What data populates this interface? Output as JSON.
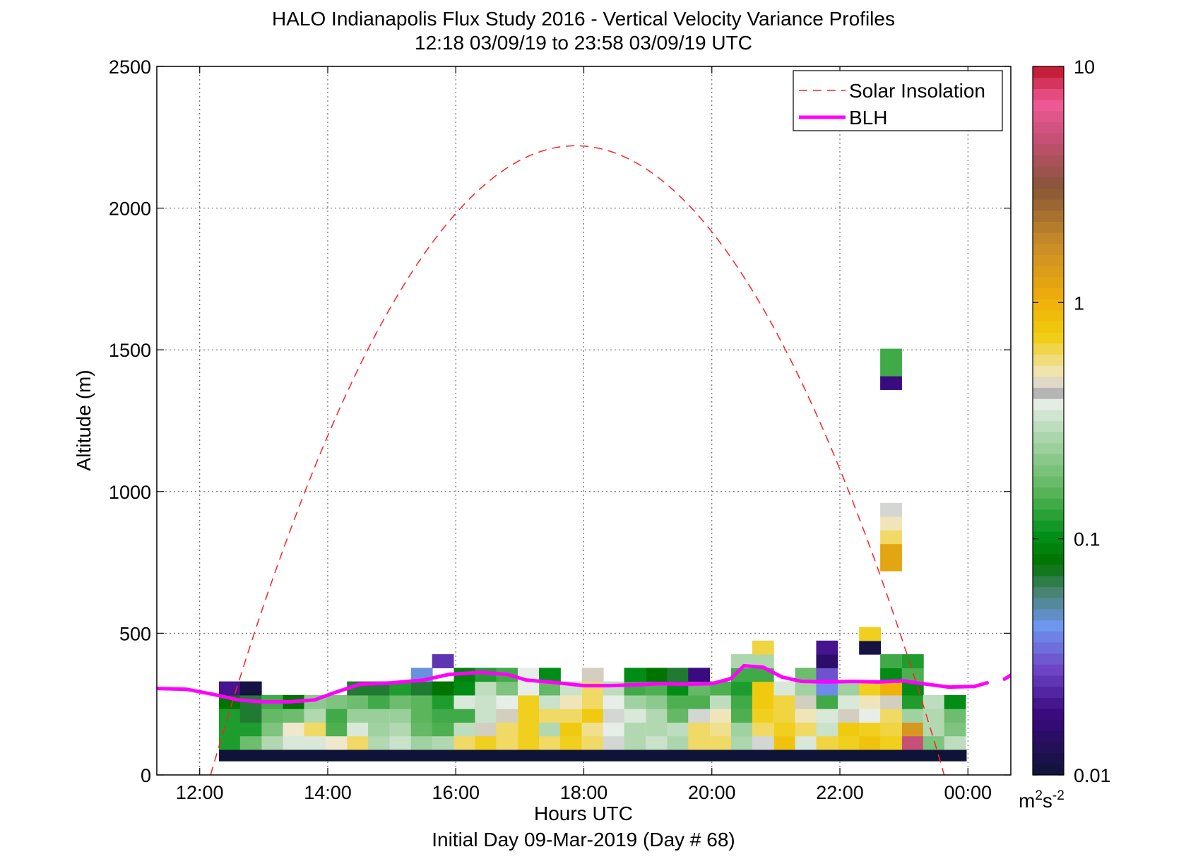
{
  "chart_data": {
    "type": "heatmap",
    "title_line1": "HALO Indianapolis Flux Study 2016 - Vertical Velocity Variance Profiles",
    "title_line2": "12:18 03/09/19 to 23:58 03/09/19  UTC",
    "xlabel": "Hours UTC",
    "xlabel2": "Initial Day 09-Mar-2019 (Day # 68)",
    "ylabel": "Altitude (m)",
    "xlim_hours": [
      11.33,
      24.67
    ],
    "ylim": [
      0,
      2500
    ],
    "xticks": [
      {
        "value": 12,
        "label": "12:00"
      },
      {
        "value": 14,
        "label": "14:00"
      },
      {
        "value": 16,
        "label": "16:00"
      },
      {
        "value": 18,
        "label": "18:00"
      },
      {
        "value": 20,
        "label": "20:00"
      },
      {
        "value": 22,
        "label": "22:00"
      },
      {
        "value": 24,
        "label": "00:00"
      }
    ],
    "yticks": [
      0,
      500,
      1000,
      1500,
      2000,
      2500
    ],
    "grid": true,
    "colorbar": {
      "scale": "log",
      "min": 0.01,
      "max": 10,
      "ticks": [
        {
          "value": 0.01,
          "label": "0.01"
        },
        {
          "value": 0.1,
          "label": "0.1"
        },
        {
          "value": 1,
          "label": "1"
        },
        {
          "value": 10,
          "label": "10"
        }
      ],
      "unit_base": "m",
      "unit_exp1": "2",
      "unit_mid": "s",
      "unit_exp2": "-2"
    },
    "legend": {
      "placement": "top-right",
      "items": [
        {
          "label": "Solar Insolation",
          "style": "dashed",
          "color": "#ff2020"
        },
        {
          "label": "BLH",
          "style": "solid",
          "color": "#ff00ff"
        }
      ]
    },
    "solar_insolation": {
      "peak_hour": 17.87,
      "peak_altitude": 2220,
      "zero_crossings_hours": [
        12.17,
        23.63
      ]
    },
    "blh": {
      "x_hours": [
        11.33,
        11.8,
        12.2,
        12.6,
        13.0,
        13.4,
        13.8,
        14.1,
        14.5,
        15.0,
        15.5,
        15.9,
        16.4,
        16.8,
        17.1,
        17.6,
        18.0,
        18.4,
        18.8,
        19.2,
        19.6,
        20.0,
        20.3,
        20.5,
        20.8,
        21.1,
        21.4,
        21.8,
        22.2,
        22.6,
        23.0,
        23.3,
        23.7,
        24.1,
        24.3
      ],
      "altitudes": [
        305,
        302,
        285,
        265,
        258,
        258,
        265,
        290,
        320,
        325,
        335,
        355,
        362,
        355,
        335,
        325,
        315,
        315,
        318,
        322,
        320,
        322,
        340,
        385,
        380,
        345,
        330,
        328,
        330,
        328,
        332,
        322,
        310,
        312,
        325
      ],
      "extra_segment": {
        "x_hours": [
          24.57,
          24.67
        ],
        "altitudes": [
          338,
          352
        ]
      }
    },
    "cell_height_m": 48,
    "baseline_strip": {
      "x_hours": [
        12.3,
        23.98
      ],
      "altitudes": [
        48,
        90
      ],
      "value": 0.01
    },
    "cells": [
      {
        "t": 12.3,
        "v": [
          0.12,
          0.12,
          0.12,
          0.08,
          0.02,
          null
        ]
      },
      {
        "t": 12.63,
        "v": [
          0.18,
          0.12,
          0.07,
          0.07,
          0.011,
          null
        ]
      },
      {
        "t": 12.97,
        "v": [
          0.28,
          0.2,
          0.17,
          0.14,
          null,
          null
        ]
      },
      {
        "t": 13.3,
        "v": [
          0.35,
          0.48,
          0.18,
          0.08,
          null,
          null
        ]
      },
      {
        "t": 13.63,
        "v": [
          0.35,
          0.6,
          0.28,
          0.22,
          null,
          null
        ]
      },
      {
        "t": 13.97,
        "v": [
          0.48,
          0.15,
          0.14,
          0.2,
          null,
          null
        ]
      },
      {
        "t": 14.3,
        "v": [
          0.6,
          0.35,
          0.24,
          0.18,
          0.07,
          null
        ]
      },
      {
        "t": 14.63,
        "v": [
          0.28,
          0.25,
          0.24,
          0.14,
          0.07,
          null
        ]
      },
      {
        "t": 14.97,
        "v": [
          0.32,
          0.28,
          0.24,
          0.18,
          0.12,
          null
        ]
      },
      {
        "t": 15.3,
        "v": [
          0.25,
          0.17,
          0.16,
          0.16,
          0.07,
          0.045
        ]
      },
      {
        "t": 15.63,
        "v": [
          0.28,
          0.15,
          0.14,
          0.12,
          0.08,
          null,
          0.025
        ]
      },
      {
        "t": 15.97,
        "v": [
          0.6,
          0.3,
          0.14,
          0.35,
          0.1,
          0.09
        ]
      },
      {
        "t": 16.3,
        "v": [
          0.7,
          0.45,
          0.32,
          0.32,
          0.3,
          0.12
        ]
      },
      {
        "t": 16.63,
        "v": [
          0.6,
          0.6,
          0.45,
          0.38,
          0.2,
          0.14
        ]
      },
      {
        "t": 16.97,
        "v": [
          0.7,
          0.7,
          0.7,
          0.7,
          0.38,
          0.38
        ]
      },
      {
        "t": 17.3,
        "v": [
          0.6,
          0.28,
          0.6,
          0.32,
          0.17,
          0.1
        ]
      },
      {
        "t": 17.63,
        "v": [
          0.7,
          0.75,
          0.6,
          0.5,
          0.32,
          null
        ]
      },
      {
        "t": 17.97,
        "v": [
          0.6,
          0.55,
          0.75,
          0.6,
          0.6,
          0.45
        ]
      },
      {
        "t": 18.3,
        "v": [
          0.4,
          0.38,
          0.4,
          0.38,
          0.3,
          null
        ]
      },
      {
        "t": 18.63,
        "v": [
          0.28,
          0.28,
          0.35,
          0.25,
          0.14,
          0.1
        ]
      },
      {
        "t": 18.97,
        "v": [
          0.32,
          0.28,
          0.28,
          0.22,
          0.15,
          0.08
        ]
      },
      {
        "t": 19.3,
        "v": [
          0.27,
          0.3,
          0.17,
          0.15,
          0.1,
          0.07
        ]
      },
      {
        "t": 19.63,
        "v": [
          0.6,
          0.6,
          0.4,
          0.15,
          0.17,
          0.018
        ]
      },
      {
        "t": 19.97,
        "v": [
          0.6,
          0.55,
          0.5,
          0.3,
          0.15,
          null
        ]
      },
      {
        "t": 20.3,
        "v": [
          0.27,
          0.25,
          0.15,
          0.14,
          0.12,
          0.14,
          0.27
        ]
      },
      {
        "t": 20.63,
        "v": [
          0.4,
          0.6,
          0.7,
          0.75,
          0.75,
          0.14,
          0.27,
          0.65
        ]
      },
      {
        "t": 20.97,
        "v": [
          0.8,
          0.7,
          0.65,
          0.65,
          0.35,
          null
        ]
      },
      {
        "t": 21.3,
        "v": [
          0.35,
          0.6,
          0.5,
          0.45,
          0.25,
          0.18
        ]
      },
      {
        "t": 21.63,
        "v": [
          0.65,
          0.32,
          0.35,
          0.14,
          0.04,
          0.03,
          0.015,
          0.02
        ]
      },
      {
        "t": 21.97,
        "v": [
          0.7,
          0.75,
          0.45,
          0.35,
          0.25,
          null
        ]
      },
      {
        "t": 22.3,
        "v": [
          0.8,
          0.7,
          0.38,
          0.5,
          0.7,
          null,
          null,
          0.011,
          0.7
        ]
      },
      {
        "t": 22.63,
        "v": [
          0.7,
          0.65,
          0.6,
          0.45,
          1.0,
          0.1,
          0.14
        ]
      },
      {
        "t": 22.97,
        "v": [
          5.0,
          1.5,
          0.25,
          0.12,
          0.1,
          0.15,
          0.12
        ]
      },
      {
        "t": 23.3,
        "v": [
          0.2,
          0.28,
          0.28,
          0.3,
          null,
          null
        ]
      },
      {
        "t": 23.63,
        "v": [
          0.3,
          0.2,
          0.18,
          0.1,
          null,
          null
        ]
      }
    ],
    "elevated_cells": [
      {
        "t": 22.63,
        "alt": 1360,
        "v": 0.018
      },
      {
        "t": 22.63,
        "alt": 1408,
        "v": 0.14
      },
      {
        "t": 22.63,
        "alt": 1456,
        "v": 0.14
      },
      {
        "t": 22.63,
        "alt": 720,
        "v": 1.2
      },
      {
        "t": 22.63,
        "alt": 768,
        "v": 1.2
      },
      {
        "t": 22.63,
        "alt": 816,
        "v": 0.6
      },
      {
        "t": 22.63,
        "alt": 864,
        "v": 0.5
      },
      {
        "t": 22.63,
        "alt": 912,
        "v": 0.4
      }
    ]
  }
}
